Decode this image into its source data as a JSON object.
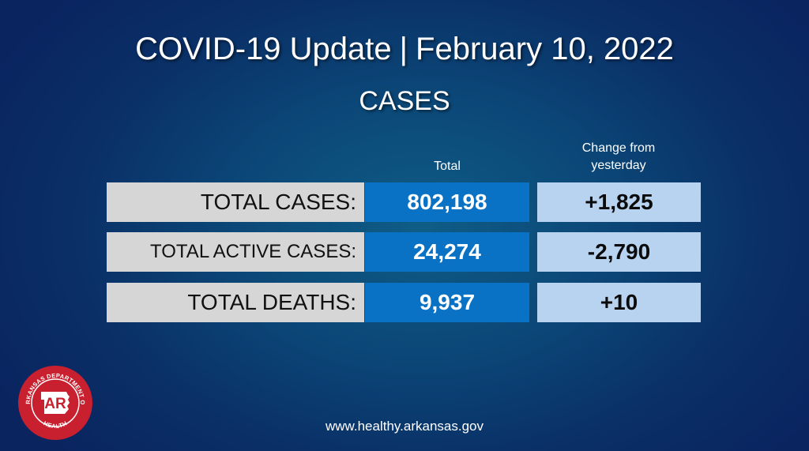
{
  "title": {
    "main": "COVID-19 Update",
    "separator": "|",
    "date": "February 10, 2022"
  },
  "subtitle": "CASES",
  "columns": {
    "total": "Total",
    "change_line1": "Change from",
    "change_line2": "yesterday"
  },
  "rows": [
    {
      "label": "TOTAL CASES:",
      "total": "802,198",
      "change": "+1,825"
    },
    {
      "label": "TOTAL ACTIVE CASES:",
      "total": "24,274",
      "change": "-2,790"
    },
    {
      "label": "TOTAL DEATHS:",
      "total": "9,937",
      "change": "+10"
    }
  ],
  "logo": {
    "top_text": "ARKANSAS DEPARTMENT OF",
    "bottom_text": "HEALTH",
    "initials": "AR",
    "color": "#c8202f"
  },
  "footer": "www.healthy.arkansas.gov",
  "colors": {
    "label_bg": "#d6d6d6",
    "total_bg": "#0a72c4",
    "change_bg": "#b8d3ef"
  }
}
